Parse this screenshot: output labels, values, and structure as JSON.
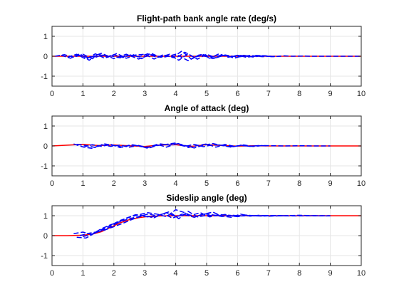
{
  "chart_data": [
    {
      "type": "line",
      "title": "Flight-path bank angle rate (deg/s)",
      "xlim": [
        0,
        10
      ],
      "ylim": [
        -1.5,
        1.5
      ],
      "xticks": [
        "0",
        "1",
        "2",
        "3",
        "4",
        "5",
        "6",
        "7",
        "8",
        "9",
        "10"
      ],
      "yticks": [
        "1",
        "0",
        "-1"
      ],
      "grid": true,
      "series": [
        {
          "style": "solid",
          "color": "#ff0000",
          "x": [
            0,
            10
          ],
          "y": [
            0,
            0
          ]
        },
        {
          "style": "dashed",
          "color": "#0000ff",
          "x": [
            0.1,
            0.4,
            0.7,
            1.0,
            1.3,
            1.6,
            1.9,
            2.2,
            2.5,
            2.8,
            3.1,
            3.4,
            3.7,
            4.0,
            4.3,
            4.6,
            4.9,
            5.2,
            5.5,
            5.8,
            6.1,
            6.4,
            6.7,
            7.0
          ],
          "y": [
            0,
            0.08,
            -0.05,
            0.1,
            -0.12,
            0.06,
            0.02,
            -0.08,
            0.07,
            -0.03,
            0.12,
            -0.06,
            0.05,
            -0.1,
            0.2,
            -0.06,
            0.08,
            -0.04,
            0.06,
            -0.03,
            0.04,
            -0.02,
            0.02,
            0
          ]
        },
        {
          "style": "dashed",
          "color": "#0000ff",
          "x": [
            0.3,
            0.6,
            0.9,
            1.2,
            1.5,
            1.8,
            2.1,
            2.4,
            2.7,
            3.0,
            3.3,
            3.6,
            3.9,
            4.2,
            4.5,
            4.8,
            5.1,
            5.4,
            5.7,
            6.0,
            6.3,
            6.6,
            6.9,
            7.2,
            7.5,
            7.8,
            8.1,
            8.4,
            8.7,
            9.0,
            9.5,
            10.0
          ],
          "y": [
            0.05,
            -0.1,
            0.12,
            -0.2,
            0.1,
            -0.05,
            0.14,
            -0.1,
            0.06,
            0.1,
            -0.14,
            0.08,
            -0.06,
            0.26,
            -0.14,
            0.1,
            -0.1,
            0.12,
            -0.05,
            0.05,
            -0.06,
            0.04,
            0.02,
            -0.02,
            0.02,
            0,
            0.01,
            0,
            0,
            0,
            0,
            0
          ]
        },
        {
          "style": "dashed",
          "color": "#0000ff",
          "x": [
            0.5,
            0.8,
            1.1,
            1.4,
            1.7,
            2.0,
            2.3,
            2.6,
            2.9,
            3.2,
            3.5,
            3.8,
            4.1,
            4.4,
            4.7,
            5.0,
            5.3,
            5.6,
            5.9,
            6.2,
            6.5,
            6.8,
            7.1,
            7.4
          ],
          "y": [
            -0.05,
            0.1,
            -0.15,
            0.12,
            -0.1,
            0.08,
            -0.06,
            0.1,
            -0.12,
            0.15,
            -0.05,
            0.1,
            -0.2,
            0.12,
            -0.15,
            0.1,
            -0.08,
            0.06,
            -0.1,
            0.05,
            -0.04,
            0.03,
            -0.02,
            0
          ]
        },
        {
          "style": "dashed",
          "color": "#0000ff",
          "x": [
            0.8,
            1.2,
            1.6,
            2.0,
            2.4,
            2.8,
            3.2,
            3.6,
            4.0,
            4.4,
            4.8,
            5.2,
            5.6,
            6.0,
            6.4,
            6.8,
            7.2
          ],
          "y": [
            0.06,
            -0.08,
            0.15,
            -0.12,
            0.1,
            -0.14,
            0.08,
            -0.06,
            0.1,
            -0.22,
            0.08,
            -0.12,
            0.06,
            -0.04,
            0.04,
            -0.02,
            0
          ]
        }
      ]
    },
    {
      "type": "line",
      "title": "Angle of attack (deg)",
      "xlim": [
        0,
        10
      ],
      "ylim": [
        -1.5,
        1.5
      ],
      "xticks": [
        "0",
        "1",
        "2",
        "3",
        "4",
        "5",
        "6",
        "7",
        "8",
        "9",
        "10"
      ],
      "yticks": [
        "1",
        "0",
        "-1"
      ],
      "grid": true,
      "series": [
        {
          "style": "solid",
          "color": "#ff0000",
          "x": [
            0,
            0.5,
            1.0,
            1.5,
            2.0,
            2.5,
            3.0,
            3.5,
            4.0,
            4.5,
            5.0,
            5.5,
            6.0,
            6.5,
            7.0,
            10.0
          ],
          "y": [
            0,
            0.04,
            0.08,
            0.02,
            0.05,
            0.01,
            -0.03,
            0.05,
            0.06,
            -0.02,
            0.06,
            0.02,
            -0.01,
            0.01,
            0,
            0
          ]
        },
        {
          "style": "dashed",
          "color": "#0000ff",
          "x": [
            0.7,
            1.0,
            1.3,
            1.6,
            1.9,
            2.2,
            2.5,
            2.8,
            3.1,
            3.4,
            3.7,
            4.0,
            4.3,
            4.6,
            4.9,
            5.2,
            5.5,
            5.8,
            6.1,
            6.4,
            6.7,
            7.0
          ],
          "y": [
            0.1,
            -0.05,
            -0.12,
            0.06,
            -0.02,
            0.04,
            -0.06,
            0.02,
            -0.12,
            0.02,
            0.08,
            0.15,
            0.02,
            -0.1,
            0.04,
            0.12,
            0.02,
            -0.06,
            0.04,
            -0.02,
            0.02,
            0
          ]
        },
        {
          "style": "dashed",
          "color": "#0000ff",
          "x": [
            0.8,
            1.1,
            1.4,
            1.7,
            2.0,
            2.3,
            2.6,
            2.9,
            3.2,
            3.5,
            3.8,
            4.1,
            4.4,
            4.7,
            5.0,
            5.3,
            5.6,
            5.9,
            6.2,
            6.5,
            6.8,
            7.1,
            7.5,
            8.0,
            8.5,
            9.0
          ],
          "y": [
            0.08,
            0.02,
            -0.08,
            0.1,
            0.02,
            -0.06,
            0.06,
            -0.04,
            -0.06,
            0.1,
            0.04,
            0.12,
            -0.08,
            0.02,
            0.1,
            -0.06,
            0.08,
            -0.02,
            0.05,
            -0.03,
            0.02,
            0.01,
            0,
            0.01,
            0,
            0
          ]
        },
        {
          "style": "dashed",
          "color": "#0000ff",
          "x": [
            1.0,
            1.3,
            1.6,
            1.9,
            2.2,
            2.5,
            2.8,
            3.1,
            3.4,
            3.7,
            4.0,
            4.3,
            4.6,
            4.9,
            5.2,
            5.5,
            5.8,
            6.1,
            6.4,
            6.7
          ],
          "y": [
            -0.06,
            0.06,
            -0.02,
            0.08,
            -0.08,
            0.04,
            0.02,
            -0.08,
            0.08,
            -0.06,
            0.1,
            -0.02,
            0.08,
            -0.04,
            0.06,
            0.04,
            -0.04,
            0.02,
            -0.01,
            0
          ]
        }
      ]
    },
    {
      "type": "line",
      "title": "Sideslip angle (deg)",
      "xlim": [
        0,
        10
      ],
      "ylim": [
        -1.5,
        1.5
      ],
      "xticks": [
        "0",
        "1",
        "2",
        "3",
        "4",
        "5",
        "6",
        "7",
        "8",
        "9",
        "10"
      ],
      "yticks": [
        "1",
        "0",
        "-1"
      ],
      "grid": true,
      "series": [
        {
          "style": "solid",
          "color": "#ff0000",
          "x": [
            0,
            0.5,
            1.0,
            1.3,
            1.6,
            1.9,
            2.2,
            2.5,
            2.8,
            3.1,
            3.5,
            4.0,
            5.0,
            10.0
          ],
          "y": [
            0,
            0,
            0.02,
            0.07,
            0.2,
            0.42,
            0.64,
            0.8,
            0.9,
            0.96,
            0.99,
            1.0,
            1.0,
            1.0
          ]
        },
        {
          "style": "dashed",
          "color": "#0000ff",
          "x": [
            0.7,
            1.0,
            1.3,
            1.6,
            1.9,
            2.2,
            2.5,
            2.8,
            3.1,
            3.4,
            3.7,
            4.0,
            4.3,
            4.6,
            4.9,
            5.2,
            5.5,
            5.8,
            6.1,
            6.4,
            6.7,
            7.0,
            7.5,
            8.0,
            8.5,
            9.0
          ],
          "y": [
            0.1,
            0.18,
            0.05,
            0.3,
            0.52,
            0.76,
            0.92,
            1.05,
            1.15,
            1.08,
            0.95,
            1.3,
            1.15,
            0.92,
            1.08,
            1.18,
            0.98,
            0.92,
            1.08,
            0.98,
            1.02,
            0.98,
            1.0,
            1.02,
            1.0,
            0.99
          ]
        },
        {
          "style": "dashed",
          "color": "#0000ff",
          "x": [
            0.8,
            1.1,
            1.4,
            1.7,
            2.0,
            2.3,
            2.6,
            2.9,
            3.2,
            3.5,
            3.8,
            4.1,
            4.4,
            4.7,
            5.0,
            5.3,
            5.6,
            5.9,
            6.2,
            6.5,
            6.8,
            7.1,
            7.5
          ],
          "y": [
            -0.08,
            -0.12,
            0.15,
            0.28,
            0.45,
            0.62,
            0.82,
            0.98,
            0.92,
            1.05,
            1.2,
            0.85,
            1.22,
            0.94,
            1.02,
            1.0,
            1.06,
            0.96,
            1.04,
            1.0,
            0.98,
            1.01,
            1.0
          ]
        },
        {
          "style": "dashed",
          "color": "#0000ff",
          "x": [
            0.9,
            1.2,
            1.5,
            1.8,
            2.1,
            2.4,
            2.7,
            3.0,
            3.3,
            3.6,
            3.9,
            4.2,
            4.5,
            4.8,
            5.1,
            5.4,
            5.7,
            6.0,
            6.3,
            6.6,
            6.9,
            7.3,
            7.8,
            8.4,
            9.0
          ],
          "y": [
            0.0,
            0.12,
            0.2,
            0.38,
            0.62,
            0.88,
            1.05,
            1.0,
            0.9,
            1.1,
            0.88,
            1.08,
            1.02,
            1.15,
            0.94,
            1.06,
            1.02,
            0.95,
            1.03,
            0.99,
            1.01,
            1.0,
            0.99,
            1.0,
            1.0
          ]
        },
        {
          "style": "dashed",
          "color": "#0000ff",
          "x": [
            1.0,
            1.3,
            1.6,
            1.9,
            2.2,
            2.5,
            2.8,
            3.1,
            3.4,
            3.7,
            4.0,
            4.3,
            4.6,
            4.9,
            5.2,
            5.5,
            5.8,
            6.1,
            6.5,
            7.0
          ],
          "y": [
            -0.05,
            0.08,
            0.35,
            0.55,
            0.7,
            0.85,
            0.95,
            1.08,
            1.0,
            1.15,
            0.96,
            1.05,
            0.92,
            1.1,
            1.04,
            0.96,
            1.03,
            0.99,
            1.0,
            1.0
          ]
        }
      ]
    }
  ]
}
